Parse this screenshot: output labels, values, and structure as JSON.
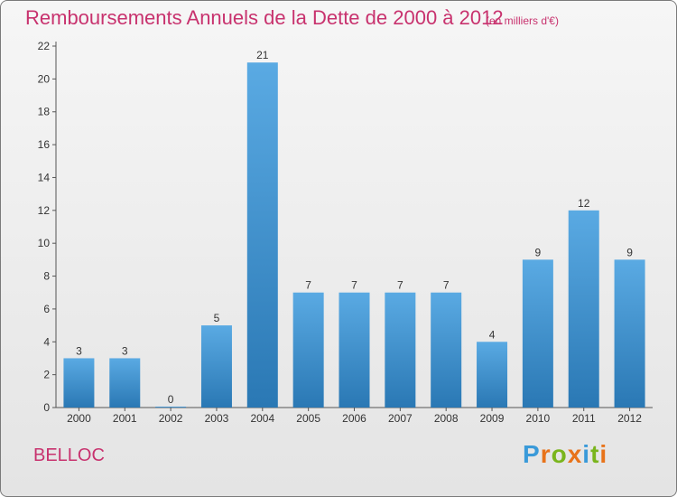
{
  "header": {
    "title": "Remboursements Annuels de la Dette de 2000 à 2012",
    "subtitle": "(en milliers d'€)"
  },
  "footer": {
    "commune": "BELLOC",
    "logo": "Proxiti"
  },
  "colors": {
    "title": "#c8326e",
    "bar_top": "#5aaae3",
    "bar_bottom": "#2a78b4",
    "logo": [
      "#3a9ad9",
      "#e8731a",
      "#7ab51d",
      "#e8731a",
      "#3a9ad9",
      "#7ab51d",
      "#e8731a"
    ]
  },
  "chart_data": {
    "type": "bar",
    "title": "Remboursements Annuels de la Dette de 2000 à 2012",
    "subtitle": "(en milliers d'€)",
    "xlabel": "",
    "ylabel": "",
    "categories": [
      "2000",
      "2001",
      "2002",
      "2003",
      "2004",
      "2005",
      "2006",
      "2007",
      "2008",
      "2009",
      "2010",
      "2011",
      "2012"
    ],
    "values": [
      3,
      3,
      0,
      5,
      21,
      7,
      7,
      7,
      7,
      4,
      9,
      12,
      9
    ],
    "ylim": [
      0,
      22
    ],
    "yticks": [
      0,
      2,
      4,
      6,
      8,
      10,
      12,
      14,
      16,
      18,
      20,
      22
    ],
    "grid": false,
    "legend": "none"
  }
}
